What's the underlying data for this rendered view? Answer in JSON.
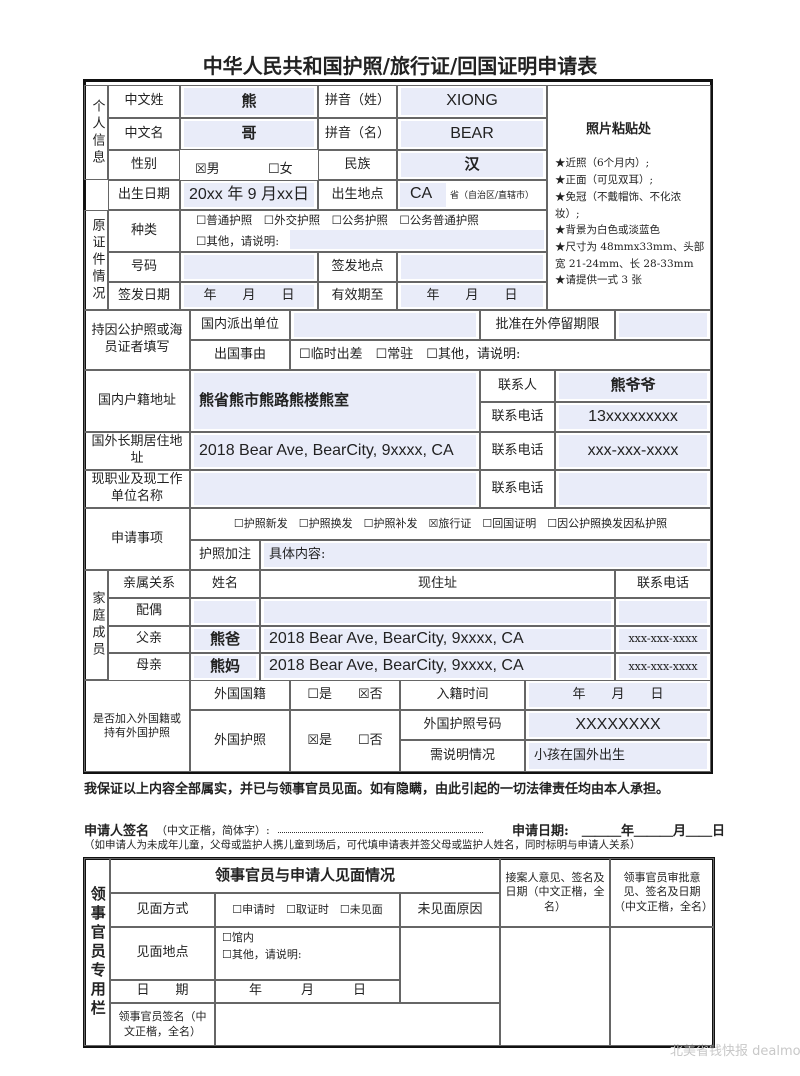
{
  "title": "中华人民共和国护照/旅行证/回国证明申请表",
  "personal": {
    "section": "个人信息",
    "surname_label": "中文姓",
    "surname": "熊",
    "pinyin_surname_label": "拼音（姓）",
    "pinyin_surname": "XIONG",
    "given_label": "中文名",
    "given": "哥",
    "pinyin_given_label": "拼音（名）",
    "pinyin_given": "BEAR",
    "sex_label": "性别",
    "sex_male": "☒男",
    "sex_female": "☐女",
    "ethnicity_label": "民族",
    "ethnicity": "汉",
    "dob_label": "出生日期",
    "dob": "20xx 年 9 月xx日",
    "pob_label": "出生地点",
    "pob": "CA",
    "pob_suffix": "省（自治区/直辖市）"
  },
  "photo": {
    "title": "照片粘贴处",
    "notes": [
      "★近照（6个月内）;",
      "★正面（可见双耳）;",
      "★免冠（不戴帽饰、不化浓妆）;",
      "★背景为白色或淡蓝色",
      "★尺寸为 48mmx33mm、头部宽 21-24mm、长 28-33mm",
      "★请提供一式 3 张"
    ]
  },
  "original_doc": {
    "section": "原证件情况",
    "type_label": "种类",
    "types": "☐普通护照　☐外交护照　☐公务护照　☐公务普通护照",
    "other": "☐其他，请说明:",
    "number_label": "号码",
    "issue_place_label": "签发地点",
    "issue_date_label": "签发日期",
    "issue_date": "年　　月　　日",
    "expiry_label": "有效期至",
    "expiry": "年　　月　　日"
  },
  "official": {
    "label": "持因公护照或海员证者填写",
    "dispatch_label": "国内派出单位",
    "stay_label": "批准在外停留期限",
    "reason_label": "出国事由",
    "reasons": "☐临时出差　☐常驻　☐其他，请说明:"
  },
  "domestic": {
    "label": "国内户籍地址",
    "address": "熊省熊市熊路熊楼熊室",
    "contact_label": "联系人",
    "contact": "熊爷爷",
    "phone_label": "联系电话",
    "phone": "13xxxxxxxxx"
  },
  "abroad": {
    "label": "国外长期居住地址",
    "address": "2018 Bear Ave, BearCity, 9xxxx, CA",
    "phone_label": "联系电话",
    "phone": "xxx-xxx-xxxx"
  },
  "work": {
    "label": "现职业及现工作单位名称",
    "phone_label": "联系电话"
  },
  "application": {
    "label": "申请事项",
    "options": "☐护照新发　☐护照换发　☐护照补发　☒旅行证　☐回国证明　☐因公护照换发因私护照",
    "endorse_label": "护照加注",
    "content_label": "具体内容:"
  },
  "family": {
    "section": "家庭成员",
    "headers": [
      "亲属关系",
      "姓名",
      "现住址",
      "联系电话"
    ],
    "rows": [
      {
        "relation": "配偶",
        "name": "",
        "address": "",
        "phone": ""
      },
      {
        "relation": "父亲",
        "name": "熊爸",
        "address": "2018 Bear Ave, BearCity, 9xxxx, CA",
        "phone": "xxx-xxx-xxxx"
      },
      {
        "relation": "母亲",
        "name": "熊妈",
        "address": "2018 Bear Ave, BearCity, 9xxxx, CA",
        "phone": "xxx-xxx-xxxx"
      }
    ]
  },
  "foreign": {
    "label": "是否加入外国籍或持有外国护照",
    "nationality_label": "外国国籍",
    "nationality": "☐是　　☒否",
    "naturalization_label": "入籍时间",
    "naturalization": "年　　月　　日",
    "passport_label": "外国护照",
    "passport": "☒是　　☐否",
    "passport_no_label": "外国护照号码",
    "passport_no": "XXXXXXXX",
    "explain_label": "需说明情况",
    "explain": "小孩在国外出生"
  },
  "declaration": "我保证以上内容全部属实，并已与领事官员见面。如有隐瞒，由此引起的一切法律责任均由本人承担。",
  "signature": {
    "label": "申请人签名",
    "hint": "（中文正楷，简体字）:",
    "date_label": "申请日期:",
    "date_parts": "＿＿＿年＿＿＿月＿＿日",
    "note": "（如申请人为未成年儿童，父母或监护人携儿童到场后，可代填申请表并签父母或监护人姓名，同时标明与申请人关系）"
  },
  "consular": {
    "section": "领事官员专用栏",
    "header": "领事官员与申请人见面情况",
    "receiver": "接案人意见、签名及日期（中文正楷，全名）",
    "approver": "领事官员审批意见、签名及日期（中文正楷，全名）",
    "method_label": "见面方式",
    "methods": "☐申请时　☐取证时　☐未见面",
    "no_meet_label": "未见面原因",
    "place_label": "见面地点",
    "place_in": "☐馆内",
    "place_other": "☐其他，请说明:",
    "date_label": "日　　期",
    "date": "年　　　月　　　日",
    "officer_sign": "领事官员签名（中文正楷，全名）"
  },
  "watermark": "北美省钱快报 dealmoon"
}
